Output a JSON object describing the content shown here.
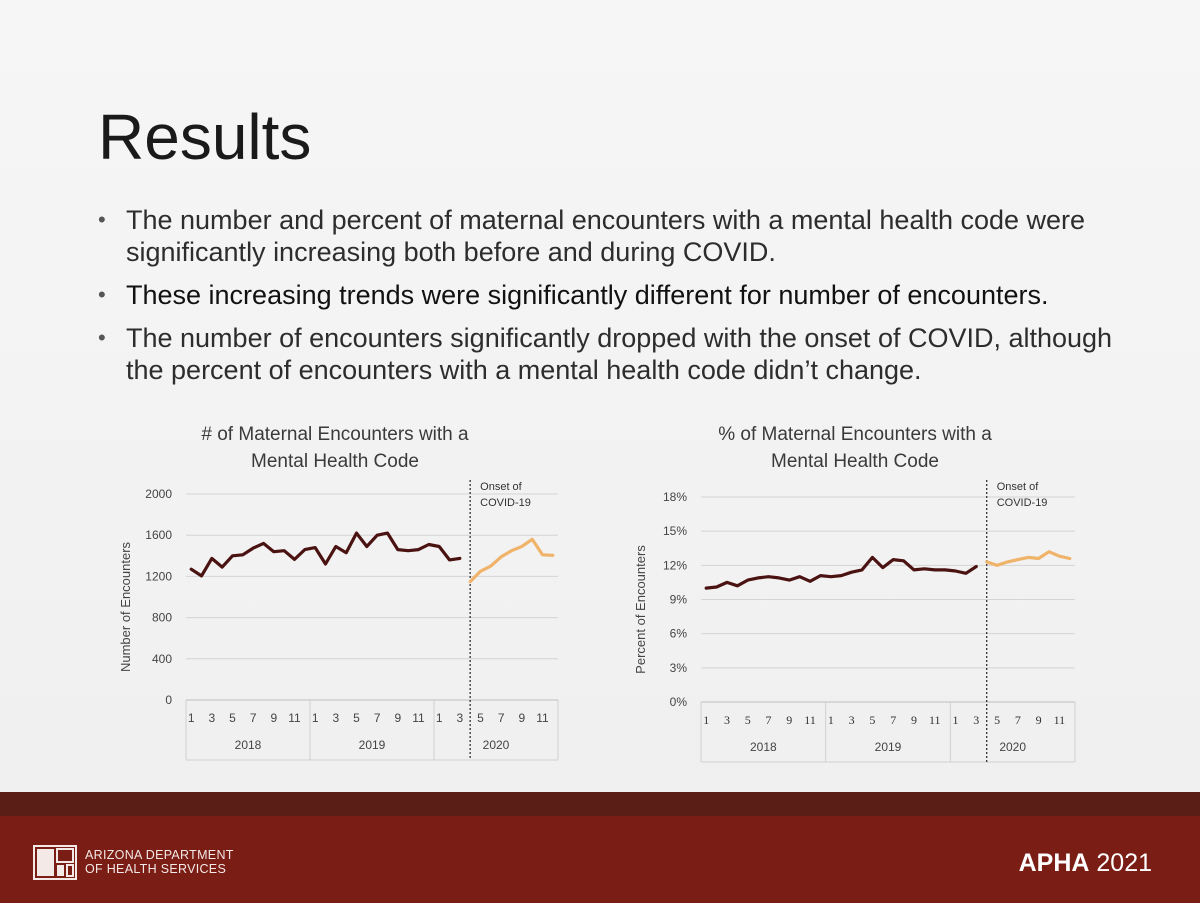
{
  "slide": {
    "title": "Results",
    "bullets": [
      "The number and percent of maternal encounters with a mental health code were significantly increasing both before and during COVID.",
      "These increasing trends were significantly different for number of encounters.",
      "The number of encounters significantly dropped with the onset of COVID, although the percent of encounters with a mental health code didn’t change."
    ]
  },
  "footer": {
    "logo_line1": "ARIZONA DEPARTMENT",
    "logo_line2": "OF HEALTH SERVICES",
    "event_bold": "APHA",
    "event_year": " 2021"
  },
  "colors": {
    "pre_covid": "#4a1312",
    "during_covid": "#f0b36a",
    "footer": "#7a1d15"
  },
  "chart_data": [
    {
      "type": "line",
      "title_lines": [
        "# of Maternal Encounters with a",
        "Mental Health Code"
      ],
      "ylabel": "Number of Encounters",
      "ylim": [
        0,
        2000
      ],
      "yticks": [
        "0",
        "400",
        "800",
        "1200",
        "1600",
        "2000"
      ],
      "month_labels": [
        "1",
        "3",
        "5",
        "7",
        "9",
        "11",
        "1",
        "3",
        "5",
        "7",
        "9",
        "11",
        "1",
        "3",
        "5",
        "7",
        "9",
        "11"
      ],
      "years": [
        "2018",
        "2019",
        "2020"
      ],
      "annotation": [
        "Onset of",
        "COVID-19"
      ],
      "grid": true,
      "series": [
        {
          "x_start_month": 1,
          "values": [
            1270,
            1205,
            1375,
            1290,
            1400,
            1410,
            1475,
            1520,
            1440,
            1450,
            1365,
            1460,
            1480,
            1320,
            1490,
            1430,
            1620,
            1490,
            1600,
            1620,
            1460,
            1450,
            1460,
            1510,
            1490,
            1360,
            1375
          ]
        },
        {
          "x_start_month": 28,
          "values": [
            1150,
            1250,
            1300,
            1390,
            1450,
            1490,
            1560,
            1410,
            1405
          ]
        }
      ]
    },
    {
      "type": "line",
      "title_lines": [
        "% of Maternal Encounters with a",
        "Mental Health Code"
      ],
      "ylabel": "Percent of Encounters",
      "ylim": [
        0,
        18
      ],
      "yticks": [
        "0%",
        "3%",
        "6%",
        "9%",
        "12%",
        "15%",
        "18%"
      ],
      "month_labels": [
        "1",
        "3",
        "5",
        "7",
        "9",
        "11",
        "1",
        "3",
        "5",
        "7",
        "9",
        "11",
        "1",
        "3",
        "5",
        "7",
        "9",
        "11"
      ],
      "years": [
        "2018",
        "2019",
        "2020"
      ],
      "annotation": [
        "Onset of",
        "COVID-19"
      ],
      "grid": true,
      "series": [
        {
          "x_start_month": 1,
          "values": [
            10.0,
            10.1,
            10.5,
            10.2,
            10.7,
            10.9,
            11.0,
            10.9,
            10.7,
            11.0,
            10.6,
            11.1,
            11.0,
            11.1,
            11.4,
            11.6,
            12.7,
            11.8,
            12.5,
            12.4,
            11.6,
            11.7,
            11.6,
            11.6,
            11.5,
            11.3,
            11.9
          ]
        },
        {
          "x_start_month": 28,
          "values": [
            12.3,
            12.0,
            12.3,
            12.5,
            12.7,
            12.6,
            13.2,
            12.8,
            12.6
          ]
        }
      ]
    }
  ]
}
